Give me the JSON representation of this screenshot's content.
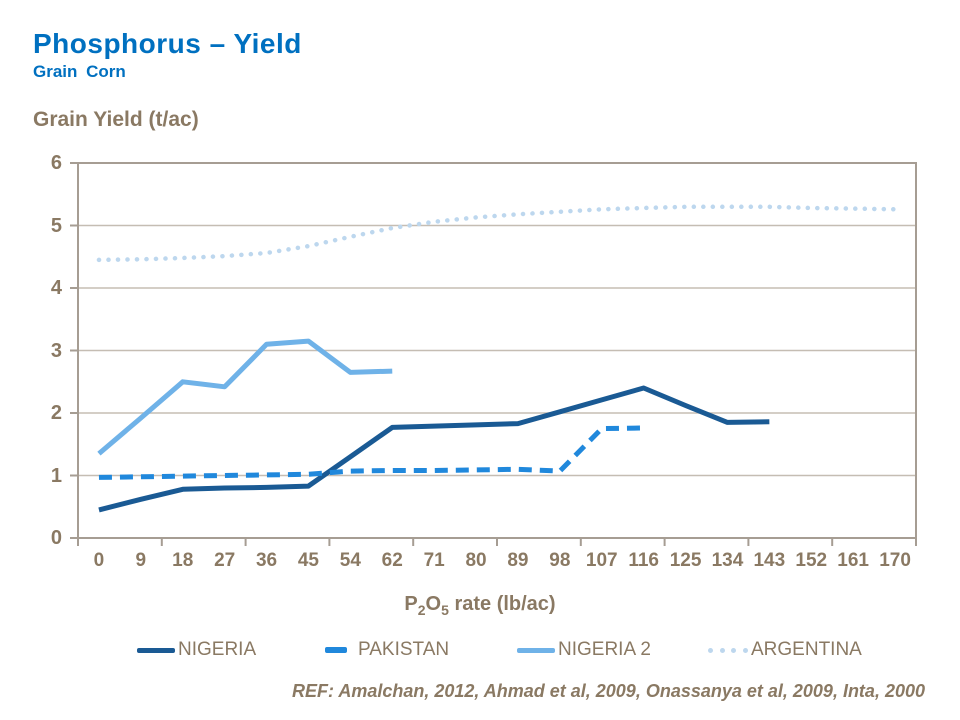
{
  "header": {
    "title": "Phosphorus – Yield",
    "subtitle": "Grain Corn"
  },
  "chart": {
    "y_axis_title": "Grain Yield (t/ac)",
    "x_axis_title": {
      "p1": "P",
      "sub1": "2",
      "p2": "O",
      "sub2": "5",
      "rest": " rate (lb/ac)"
    }
  },
  "chart_data": {
    "type": "line",
    "title": "Phosphorus – Yield (Grain Corn)",
    "xlabel": "P2O5 rate (lb/ac)",
    "ylabel": "Grain Yield (t/ac)",
    "ylim": [
      0,
      6
    ],
    "yticks": [
      0,
      1,
      2,
      3,
      4,
      5,
      6
    ],
    "grid": true,
    "legend_position": "bottom",
    "categories": [
      "0",
      "9",
      "18",
      "27",
      "36",
      "45",
      "54",
      "62",
      "71",
      "80",
      "89",
      "98",
      "107",
      "116",
      "125",
      "134",
      "143",
      "152",
      "161",
      "170"
    ],
    "series": [
      {
        "name": "NIGERIA",
        "color": "#1A5A94",
        "style": "solid",
        "values": [
          0.45,
          0.62,
          0.78,
          0.8,
          0.81,
          0.83,
          1.3,
          1.77,
          1.79,
          1.81,
          1.83,
          2.02,
          2.21,
          2.4,
          2.12,
          1.85,
          1.86,
          null,
          null,
          null
        ]
      },
      {
        "name": "PAKISTAN",
        "color": "#2088DC",
        "style": "dashed",
        "values": [
          0.97,
          0.98,
          0.99,
          1.0,
          1.01,
          1.02,
          1.07,
          1.08,
          1.08,
          1.09,
          1.1,
          1.07,
          1.75,
          1.76,
          null,
          null,
          null,
          null,
          null,
          null
        ]
      },
      {
        "name": "NIGERIA 2",
        "color": "#6FB2E8",
        "style": "solid",
        "values": [
          1.35,
          1.92,
          2.5,
          2.42,
          3.1,
          3.15,
          2.65,
          2.67,
          null,
          null,
          null,
          null,
          null,
          null,
          null,
          null,
          null,
          null,
          null,
          null
        ]
      },
      {
        "name": "ARGENTINA",
        "color": "#BDD7EE",
        "style": "dotted",
        "values": [
          4.45,
          4.46,
          4.48,
          4.51,
          4.56,
          4.67,
          4.82,
          4.96,
          5.06,
          5.13,
          5.18,
          5.22,
          5.26,
          5.28,
          5.3,
          5.3,
          5.3,
          5.28,
          5.27,
          5.26
        ]
      }
    ]
  },
  "footer": {
    "ref": "REF: Amalchan, 2012, Ahmad et al, 2009, Onassanya et al, 2009, Inta, 2000"
  },
  "colors": {
    "title_blue": "#0070C0",
    "text_brown": "#8A7963",
    "gridline": "#C5BDB3",
    "axis_border": "#A69D93"
  }
}
